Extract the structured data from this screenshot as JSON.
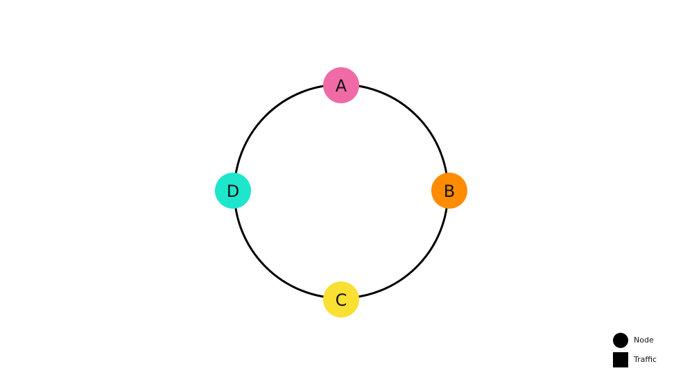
{
  "diagram": {
    "ring": {
      "color": "#000000"
    },
    "nodes": [
      {
        "id": "a",
        "label": "A",
        "color": "#f06aa6"
      },
      {
        "id": "b",
        "label": "B",
        "color": "#ff8c00"
      },
      {
        "id": "c",
        "label": "C",
        "color": "#f9e033"
      },
      {
        "id": "d",
        "label": "D",
        "color": "#1de6cc"
      }
    ]
  },
  "legend": {
    "node_label": "Node",
    "traffic_label": "Traffic"
  }
}
